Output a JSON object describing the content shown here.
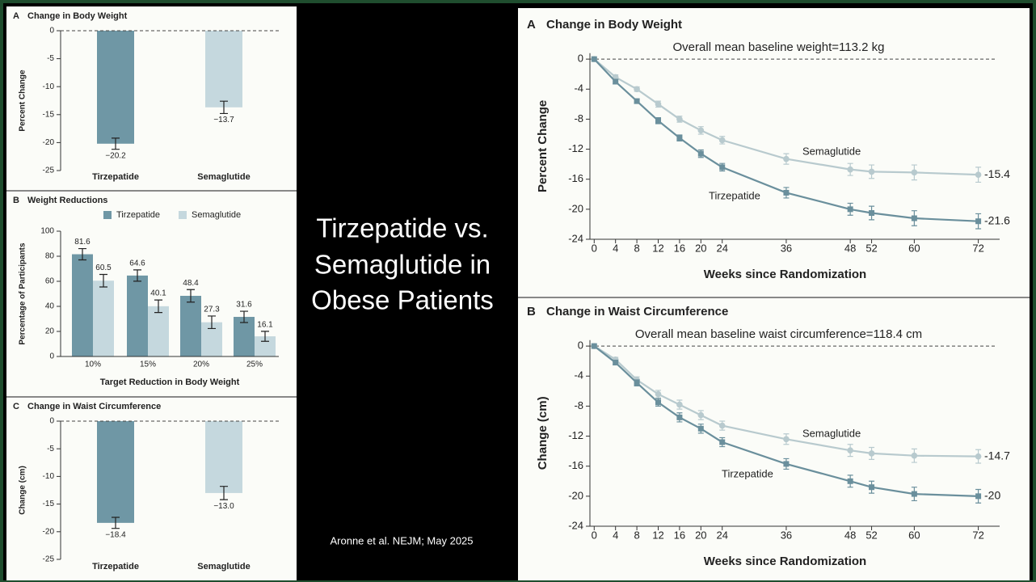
{
  "slide_title": [
    "Tirzepatide vs.",
    "Semaglutide in",
    "Obese Patients"
  ],
  "citation": "Aronne et al. NEJM; May 2025",
  "chart_data": [
    {
      "type": "bar",
      "panel": "A",
      "title": "Change in Body Weight",
      "y_label": "Percent Change",
      "categories": [
        "Tirzepatide",
        "Semaglutide"
      ],
      "values": [
        -20.2,
        -13.7
      ],
      "value_labels": [
        "−20.2",
        "−13.7"
      ],
      "errors": [
        1.0,
        1.1
      ],
      "colors": [
        "#6f97a5",
        "#c5d8de"
      ],
      "ylim": [
        -25,
        0
      ],
      "yticks": [
        0,
        -5,
        -10,
        -15,
        -20,
        -25
      ]
    },
    {
      "type": "grouped-bar",
      "panel": "B",
      "title": "Weight Reductions",
      "y_label": "Percentage of Participants",
      "x_label": "Target Reduction in Body Weight",
      "categories": [
        "10%",
        "15%",
        "20%",
        "25%"
      ],
      "series": [
        {
          "name": "Tirzepatide",
          "color": "#6f97a5",
          "values": [
            81.6,
            64.6,
            48.4,
            31.6
          ],
          "errors": [
            4.5,
            4.5,
            5,
            4.5
          ]
        },
        {
          "name": "Semaglutide",
          "color": "#c5d8de",
          "values": [
            60.5,
            40.1,
            27.3,
            16.1
          ],
          "errors": [
            5,
            5,
            5,
            4
          ]
        }
      ],
      "ylim": [
        0,
        100
      ],
      "yticks": [
        0,
        20,
        40,
        60,
        80,
        100
      ]
    },
    {
      "type": "bar",
      "panel": "C",
      "title": "Change in Waist Circumference",
      "y_label": "Change (cm)",
      "categories": [
        "Tirzepatide",
        "Semaglutide"
      ],
      "values": [
        -18.4,
        -13.0
      ],
      "value_labels": [
        "−18.4",
        "−13.0"
      ],
      "errors": [
        1.0,
        1.2
      ],
      "colors": [
        "#6f97a5",
        "#c5d8de"
      ],
      "ylim": [
        -25,
        0
      ],
      "yticks": [
        0,
        -5,
        -10,
        -15,
        -20,
        -25
      ]
    },
    {
      "type": "line",
      "panel": "A",
      "title": "Change in Body Weight",
      "annotation": "Overall mean baseline weight=113.2 kg",
      "y_label": "Percent Change",
      "x_label": "Weeks since Randomization",
      "x": [
        0,
        4,
        8,
        12,
        16,
        20,
        24,
        36,
        48,
        52,
        60,
        72
      ],
      "series": [
        {
          "name": "Tirzepatide",
          "color": "#6a8f9c",
          "values": [
            0,
            -3.0,
            -5.6,
            -8.2,
            -10.5,
            -12.6,
            -14.4,
            -17.8,
            -20.0,
            -20.5,
            -21.2,
            -21.6
          ],
          "errors": [
            0,
            0.3,
            0.3,
            0.4,
            0.4,
            0.5,
            0.5,
            0.7,
            0.8,
            0.9,
            1.0,
            1.0
          ]
        },
        {
          "name": "Semaglutide",
          "color": "#b8cace",
          "values": [
            0,
            -2.4,
            -4.0,
            -6.0,
            -8.0,
            -9.5,
            -10.8,
            -13.3,
            -14.7,
            -15.0,
            -15.1,
            -15.4
          ],
          "errors": [
            0,
            0.3,
            0.3,
            0.4,
            0.4,
            0.5,
            0.5,
            0.7,
            0.8,
            0.9,
            1.0,
            1.0
          ]
        }
      ],
      "xlim": [
        -0.8,
        76
      ],
      "xticks": [
        0,
        4,
        8,
        12,
        16,
        20,
        24,
        36,
        48,
        52,
        60,
        72
      ],
      "ylim": [
        -24,
        0.8
      ],
      "yticks": [
        0,
        -4,
        -8,
        -12,
        -16,
        -20,
        -24
      ]
    },
    {
      "type": "line",
      "panel": "B",
      "title": "Change in Waist Circumference",
      "annotation": "Overall mean baseline waist circumference=118.4 cm",
      "y_label": "Change (cm)",
      "x_label": "Weeks since Randomization",
      "x": [
        0,
        4,
        8,
        12,
        16,
        20,
        24,
        36,
        48,
        52,
        60,
        72
      ],
      "series": [
        {
          "name": "Tirzepatide",
          "color": "#6a8f9c",
          "values": [
            0,
            -2.2,
            -4.9,
            -7.5,
            -9.5,
            -11.0,
            -12.8,
            -15.7,
            -18.0,
            -18.8,
            -19.7,
            -20.0
          ],
          "errors": [
            0,
            0.3,
            0.4,
            0.5,
            0.6,
            0.6,
            0.6,
            0.7,
            0.8,
            0.8,
            0.9,
            0.9
          ]
        },
        {
          "name": "Semaglutide",
          "color": "#b8cace",
          "values": [
            0,
            -1.8,
            -4.5,
            -6.4,
            -7.8,
            -9.2,
            -10.6,
            -12.4,
            -13.9,
            -14.3,
            -14.6,
            -14.7
          ],
          "errors": [
            0,
            0.3,
            0.4,
            0.5,
            0.6,
            0.6,
            0.6,
            0.7,
            0.8,
            0.8,
            0.9,
            0.9
          ]
        }
      ],
      "xlim": [
        -0.8,
        76
      ],
      "xticks": [
        0,
        4,
        8,
        12,
        16,
        20,
        24,
        36,
        48,
        52,
        60,
        72
      ],
      "ylim": [
        -24,
        0.8
      ],
      "yticks": [
        0,
        -4,
        -8,
        -12,
        -16,
        -20,
        -24
      ]
    }
  ]
}
